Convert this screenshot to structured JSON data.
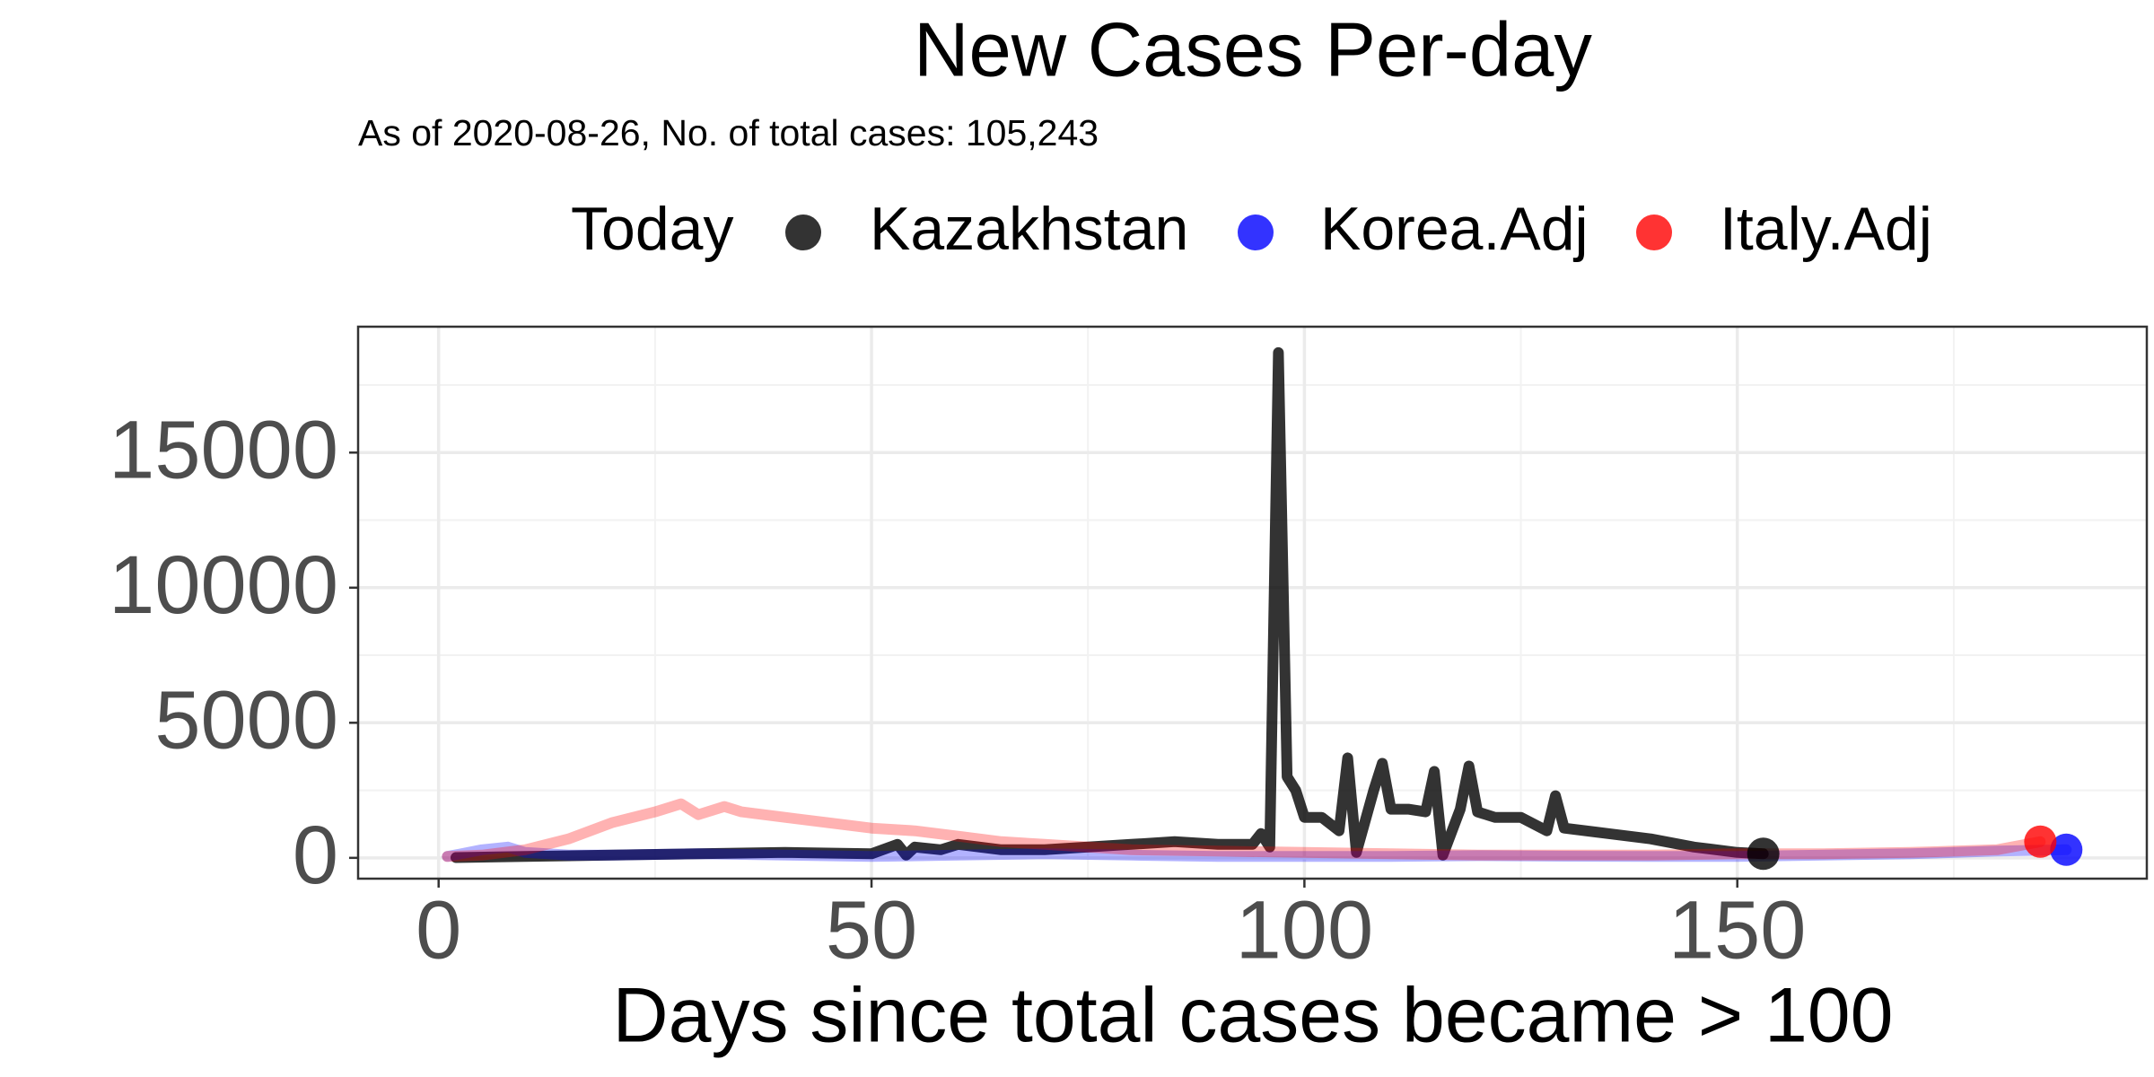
{
  "chart_data": {
    "type": "line",
    "title": "New Cases Per-day",
    "subtitle": "As of 2020-08-26, No. of total cases: 105,243",
    "x_label": "Days since total cases became > 100",
    "legend_title": "Today",
    "legend_position": "top",
    "grid": true,
    "xlim": [
      -9.3,
      197.3
    ],
    "ylim": [
      -770,
      19660
    ],
    "xticks": [
      0,
      50,
      100,
      150
    ],
    "yticks": [
      0,
      5000,
      10000,
      15000
    ],
    "x_minor_grid": [
      25,
      75,
      125,
      175
    ],
    "y_minor_grid": [
      2500,
      7500,
      12500,
      17500
    ],
    "series": [
      {
        "name": "Kazakhstan",
        "color": "#000000",
        "alpha": 0.8,
        "x": [
          2,
          10,
          20,
          30,
          40,
          50,
          53,
          54,
          55,
          58,
          60,
          65,
          70,
          75,
          80,
          85,
          90,
          94,
          95,
          96,
          97,
          98,
          99,
          100,
          102,
          104,
          105,
          106,
          108,
          109,
          110,
          112,
          114,
          115,
          116,
          118,
          119,
          120,
          122,
          125,
          128,
          129,
          130,
          135,
          140,
          145,
          150,
          153
        ],
        "values": [
          10,
          50,
          100,
          150,
          200,
          150,
          500,
          100,
          400,
          300,
          500,
          300,
          300,
          400,
          500,
          600,
          500,
          500,
          900,
          400,
          18700,
          3000,
          2500,
          1500,
          1500,
          1000,
          3700,
          200,
          2500,
          3500,
          1800,
          1800,
          1700,
          3200,
          100,
          1800,
          3400,
          1700,
          1500,
          1500,
          1000,
          2300,
          1100,
          900,
          700,
          400,
          200,
          150
        ]
      },
      {
        "name": "Korea.Adj",
        "color": "#0000ff",
        "alpha": 0.3,
        "x": [
          1,
          5,
          8,
          10,
          15,
          20,
          30,
          40,
          50,
          60,
          70,
          80,
          90,
          100,
          110,
          120,
          130,
          140,
          150,
          160,
          170,
          180,
          188
        ],
        "values": [
          50,
          300,
          400,
          200,
          100,
          100,
          150,
          100,
          50,
          100,
          150,
          100,
          50,
          50,
          50,
          80,
          60,
          50,
          50,
          100,
          150,
          250,
          300
        ]
      },
      {
        "name": "Italy.Adj",
        "color": "#ff0000",
        "alpha": 0.3,
        "x": [
          1,
          5,
          10,
          15,
          20,
          25,
          28,
          30,
          33,
          35,
          40,
          45,
          50,
          55,
          60,
          65,
          70,
          75,
          80,
          90,
          100,
          110,
          120,
          130,
          140,
          150,
          160,
          170,
          180,
          185
        ],
        "values": [
          50,
          100,
          300,
          700,
          1300,
          1700,
          2000,
          1600,
          1900,
          1700,
          1500,
          1300,
          1100,
          1000,
          800,
          600,
          500,
          400,
          300,
          250,
          200,
          150,
          100,
          100,
          100,
          150,
          150,
          200,
          300,
          600
        ]
      }
    ]
  }
}
